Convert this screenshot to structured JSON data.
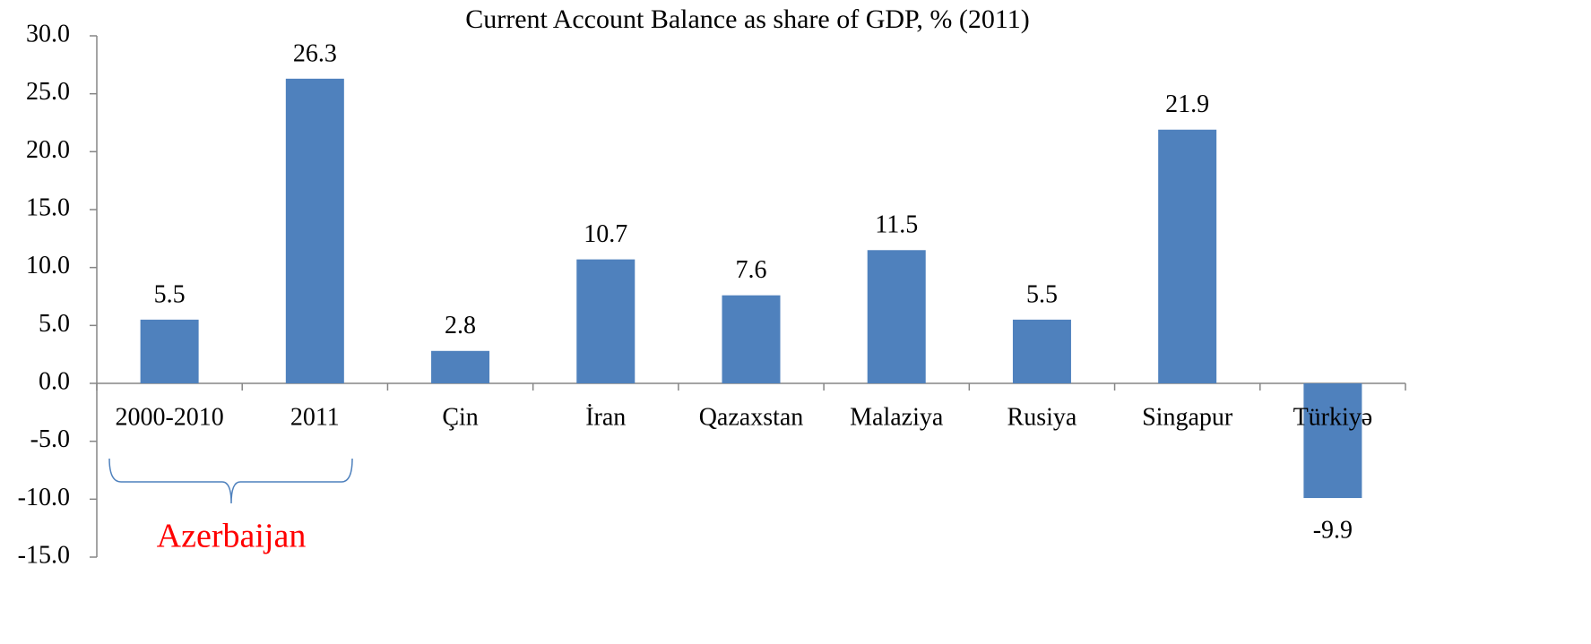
{
  "chart_data": {
    "type": "bar",
    "title": "Current Account Balance as share of GDP, % (2011)",
    "categories": [
      "2000-2010",
      "2011",
      "Çin",
      "İran",
      "Qazaxstan",
      "Malaziya",
      "Rusiya",
      "Singapur",
      "Türkiyə"
    ],
    "values": [
      5.5,
      26.3,
      2.8,
      10.7,
      7.6,
      11.5,
      5.5,
      21.9,
      -9.9
    ],
    "color": "#4f81bd",
    "ylim": [
      -15,
      30
    ],
    "yticks": [
      {
        "value": -15,
        "label": "-15.0"
      },
      {
        "value": -10,
        "label": "-10.0"
      },
      {
        "value": -5,
        "label": "-5.0"
      },
      {
        "value": 0,
        "label": "0.0"
      },
      {
        "value": 5,
        "label": "5.0"
      },
      {
        "value": 10,
        "label": "10.0"
      },
      {
        "value": 15,
        "label": "15.0"
      },
      {
        "value": 20,
        "label": "20.0"
      },
      {
        "value": 25,
        "label": "25.0"
      },
      {
        "value": 30,
        "label": "30.0"
      }
    ],
    "grid": false,
    "annotation": "Azerbaijan"
  }
}
